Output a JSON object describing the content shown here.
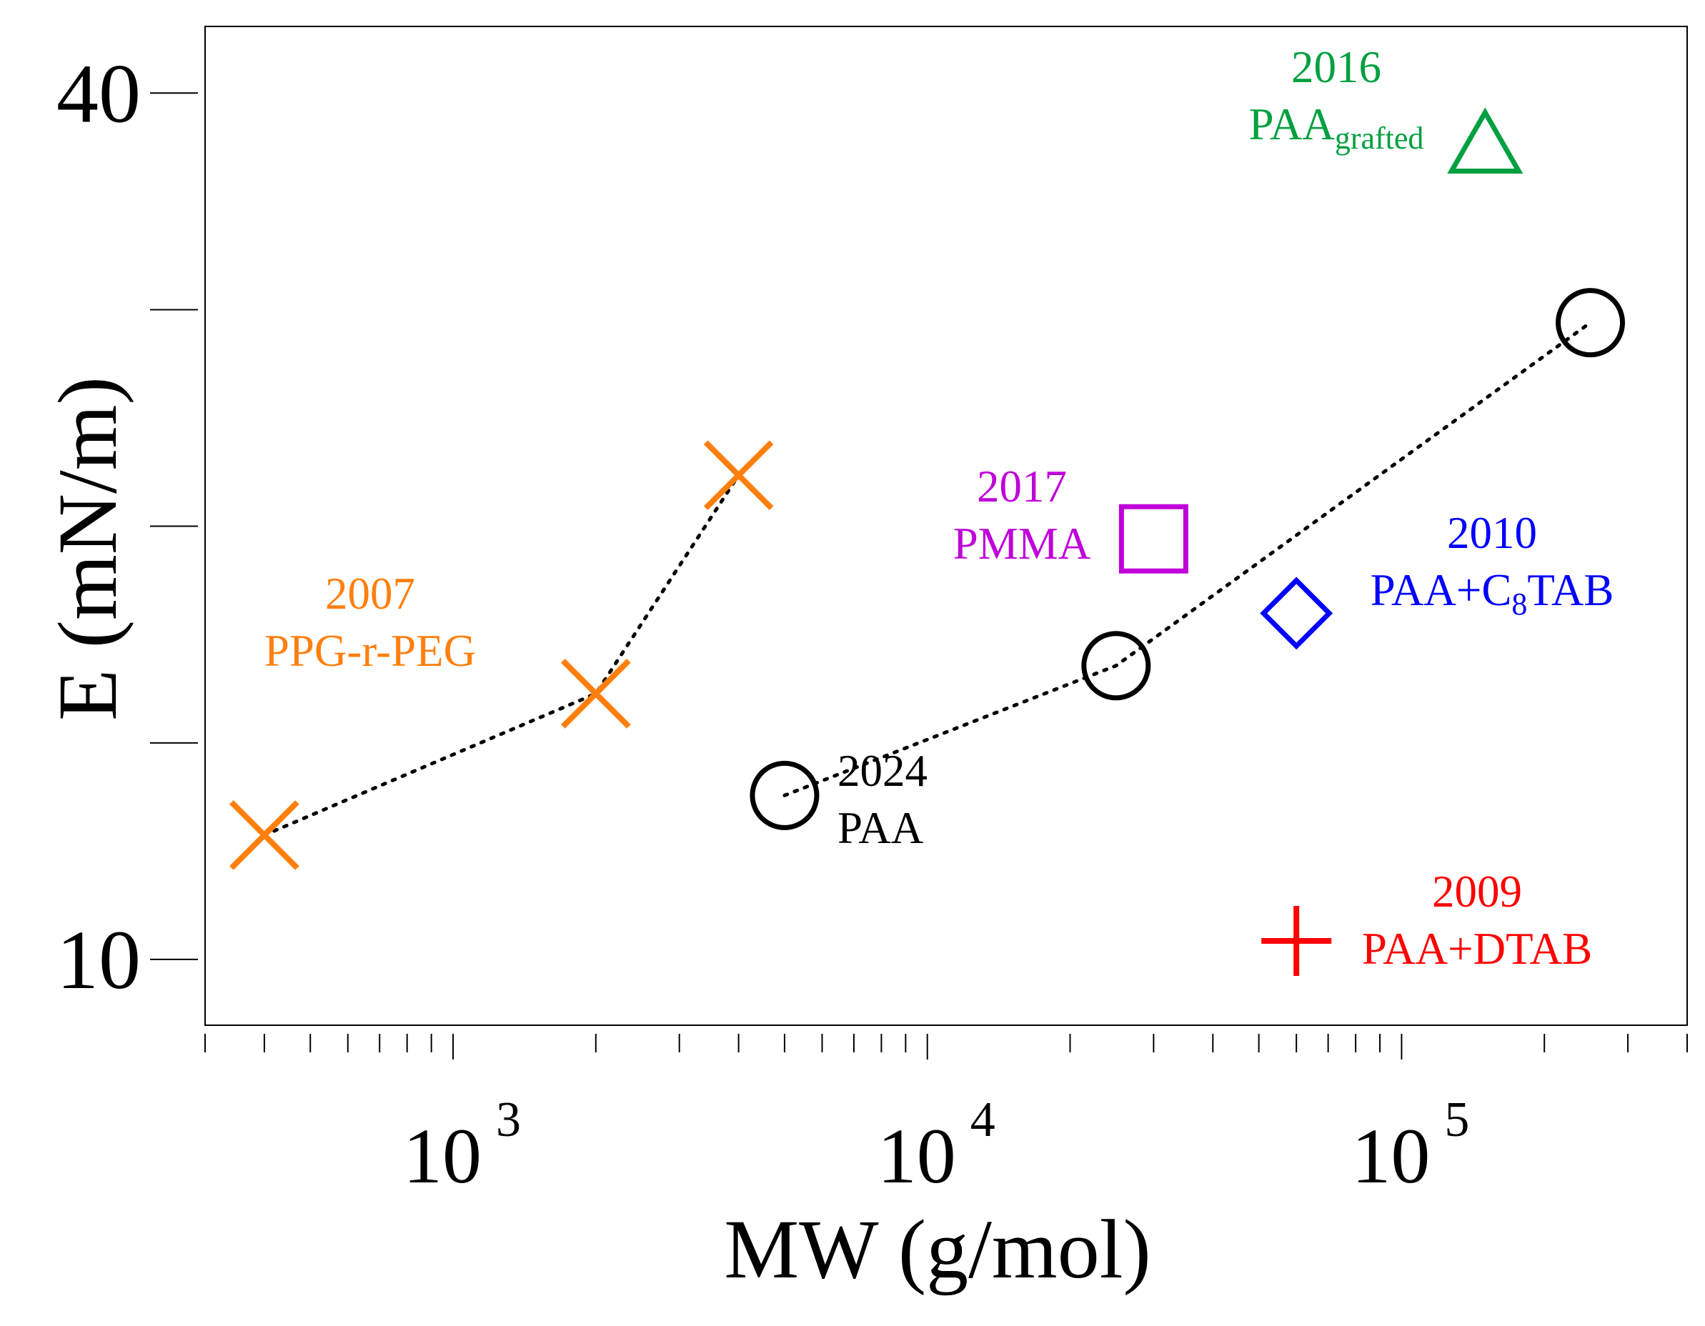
{
  "chart_data": {
    "type": "scatter",
    "title": "",
    "xlabel": "MW (g/mol)",
    "ylabel": "E (mN/m)",
    "xscale": "log",
    "yscale": "log",
    "xlim": [
      300,
      400000
    ],
    "ylim": [
      9.0,
      44.5
    ],
    "x_major_ticks": [
      {
        "value": 1000,
        "base": "10",
        "exp": "3"
      },
      {
        "value": 10000,
        "base": "10",
        "exp": "4"
      },
      {
        "value": 100000,
        "base": "10",
        "exp": "5"
      }
    ],
    "y_ticks": [
      {
        "value": 10,
        "label": "10"
      },
      {
        "value": 14.14,
        "label": ""
      },
      {
        "value": 20,
        "label": ""
      },
      {
        "value": 28.28,
        "label": ""
      },
      {
        "value": 40,
        "label": "40"
      }
    ],
    "series": [
      {
        "id": "ppg",
        "year": "2007",
        "name": "PPG-r-PEG",
        "name_sub": "",
        "name_suffix": "",
        "marker": "x",
        "color": "#ff7f0e",
        "connected": true,
        "points": [
          {
            "x": 400,
            "y": 12.2
          },
          {
            "x": 2000,
            "y": 15.3
          },
          {
            "x": 4000,
            "y": 21.7
          }
        ]
      },
      {
        "id": "paa",
        "year": "2024",
        "name": "PAA",
        "name_sub": "",
        "name_suffix": "",
        "marker": "circle",
        "color": "#000000",
        "connected": true,
        "points": [
          {
            "x": 5000,
            "y": 13.0
          },
          {
            "x": 25000,
            "y": 16.0
          },
          {
            "x": 250000,
            "y": 27.7
          }
        ]
      },
      {
        "id": "pmma",
        "year": "2017",
        "name": "PMMA",
        "name_sub": "",
        "name_suffix": "",
        "marker": "square",
        "color": "#bf00d9",
        "connected": false,
        "points": [
          {
            "x": 30000,
            "y": 19.6
          }
        ]
      },
      {
        "id": "c8tab",
        "year": "2010",
        "name": "PAA+C",
        "name_sub": "8",
        "name_suffix": "TAB",
        "marker": "diamond",
        "color": "#0000ff",
        "connected": false,
        "points": [
          {
            "x": 60000,
            "y": 17.4
          }
        ]
      },
      {
        "id": "grafted",
        "year": "2016",
        "name": "PAA",
        "name_sub": "grafted",
        "name_suffix": "",
        "marker": "triangle",
        "color": "#00a040",
        "connected": false,
        "points": [
          {
            "x": 150000,
            "y": 37.0
          }
        ]
      },
      {
        "id": "dtab",
        "year": "2009",
        "name": "PAA+DTAB",
        "name_sub": "",
        "name_suffix": "",
        "marker": "plus",
        "color": "#ff0000",
        "connected": false,
        "points": [
          {
            "x": 60000,
            "y": 10.3
          }
        ]
      }
    ]
  }
}
